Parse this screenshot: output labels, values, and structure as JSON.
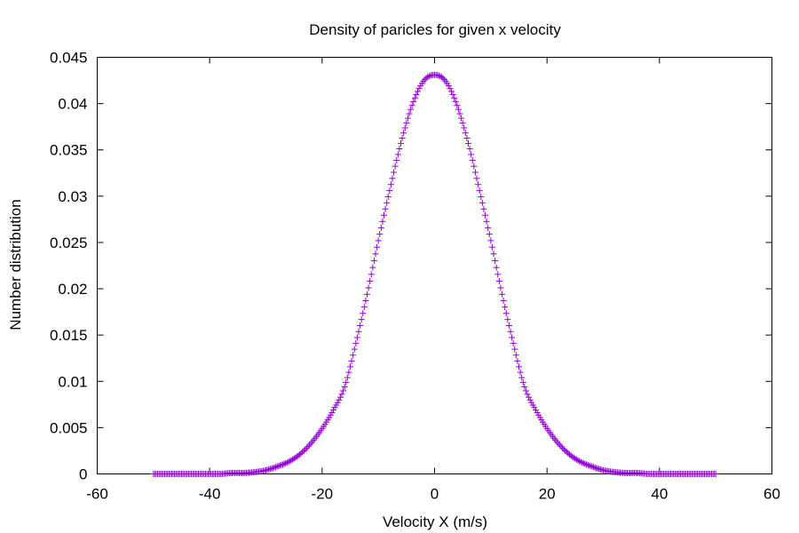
{
  "chart_data": {
    "type": "scatter",
    "title": "Density of paricles for given x velocity",
    "xlabel": "Velocity X (m/s)",
    "ylabel": "Number distribution",
    "xlim": [
      -60,
      60
    ],
    "ylim": [
      0,
      0.045
    ],
    "x_ticks": [
      "-60",
      "-40",
      "-20",
      "0",
      "20",
      "40",
      "60"
    ],
    "y_ticks": [
      "0",
      "0.005",
      "0.01",
      "0.015",
      "0.02",
      "0.025",
      "0.03",
      "0.035",
      "0.04",
      "0.045"
    ],
    "grid": false,
    "marker": "+",
    "series_color": "#9400D3",
    "series": [
      {
        "x": [
          -50,
          -48,
          -46,
          -44,
          -42,
          -40,
          -38,
          -36,
          -34,
          -32,
          -30,
          -28,
          -26,
          -24,
          -22,
          -20,
          -18,
          -16,
          -14,
          -12,
          -10,
          -8,
          -6,
          -4,
          -2,
          0,
          2,
          4,
          6,
          8,
          10,
          12,
          14,
          16,
          18,
          20,
          22,
          24,
          26,
          28,
          30,
          32,
          34,
          36,
          38,
          40,
          42,
          44,
          46,
          48,
          50
        ],
        "y": [
          0,
          0,
          0,
          0,
          0,
          0,
          0,
          0.0001,
          0.0001,
          0.0002,
          0.0004,
          0.0008,
          0.0013,
          0.0021,
          0.0033,
          0.0049,
          0.0069,
          0.0094,
          0.0141,
          0.0194,
          0.0252,
          0.0306,
          0.0357,
          0.0398,
          0.0424,
          0.0431,
          0.0424,
          0.0398,
          0.0357,
          0.0306,
          0.0252,
          0.0194,
          0.0141,
          0.0094,
          0.0069,
          0.0049,
          0.0033,
          0.0021,
          0.0013,
          0.0008,
          0.0004,
          0.0002,
          0.0001,
          0.0001,
          0,
          0,
          0,
          0,
          0,
          0,
          0
        ]
      }
    ]
  }
}
